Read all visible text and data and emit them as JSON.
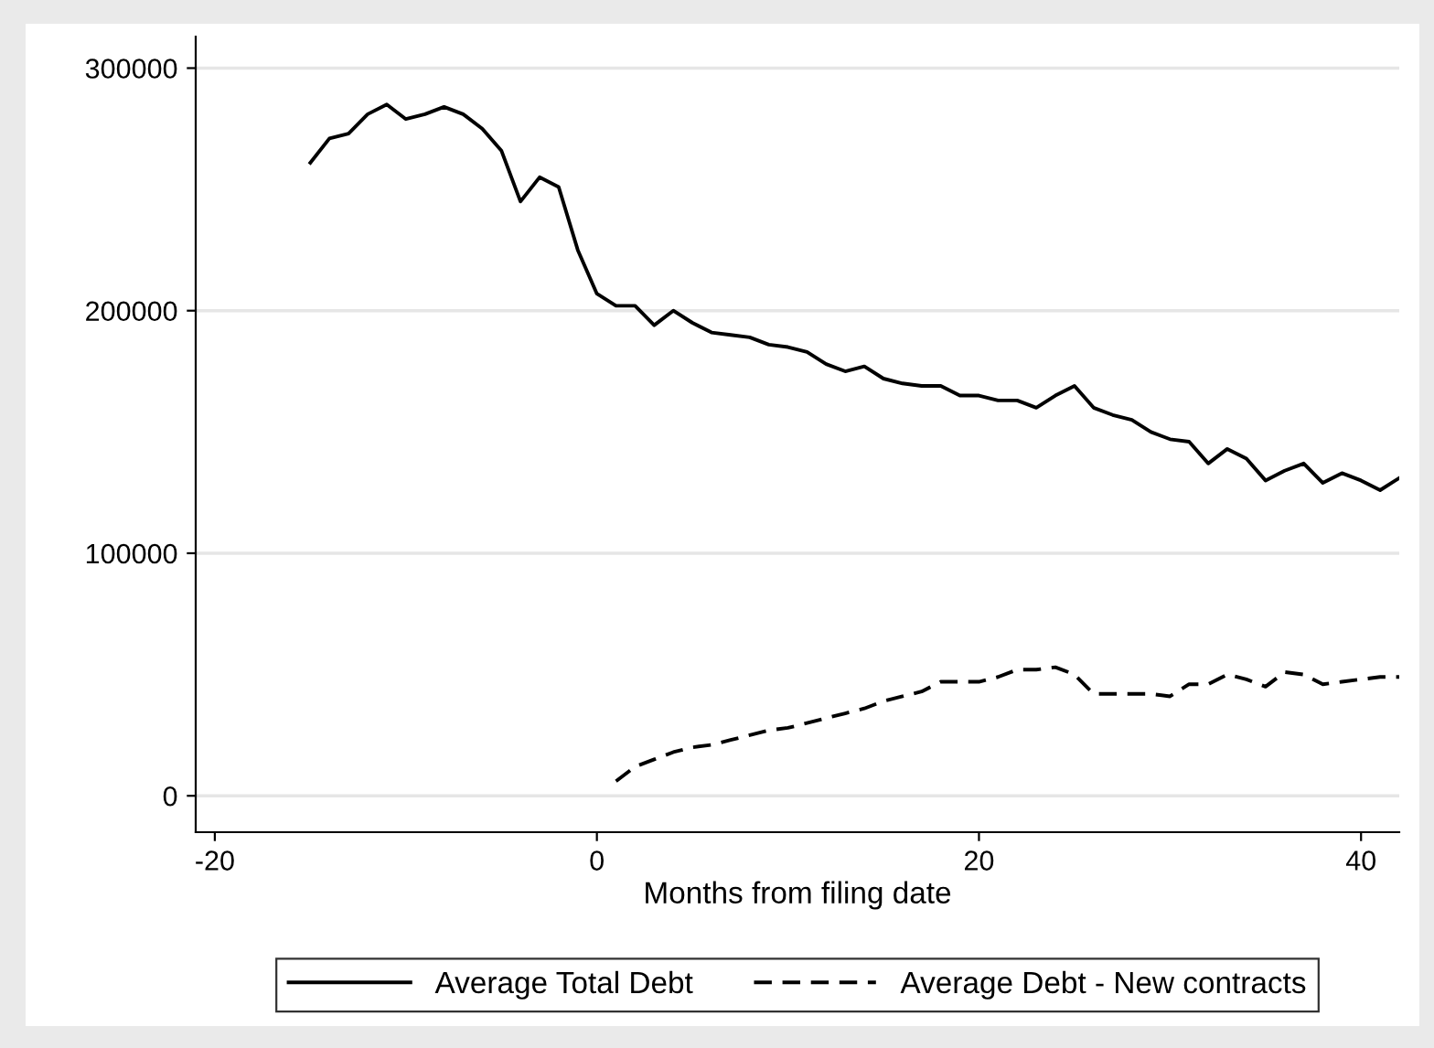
{
  "chart_data": {
    "type": "line",
    "xlabel": "Months from filing date",
    "xlim": [
      -21,
      42
    ],
    "xticks": [
      -20,
      0,
      20,
      40
    ],
    "ylim": [
      -15000,
      313000
    ],
    "yticks": [
      0,
      100000,
      200000,
      300000
    ],
    "grid": "y",
    "legend": "bottom",
    "series": [
      {
        "name": "Average Total Debt",
        "color": "#000000",
        "line_style": "solid",
        "x": [
          -15,
          -14,
          -13,
          -12,
          -11,
          -10,
          -9,
          -8,
          -7,
          -6,
          -5,
          -4,
          -3,
          -2,
          -1,
          0,
          1,
          2,
          3,
          4,
          5,
          6,
          7,
          8,
          9,
          10,
          11,
          12,
          13,
          14,
          15,
          16,
          17,
          18,
          19,
          20,
          21,
          22,
          23,
          24,
          25,
          26,
          27,
          28,
          29,
          30,
          31,
          32,
          33,
          34,
          35,
          36,
          37,
          38,
          39,
          40,
          41,
          42
        ],
        "values": [
          261000,
          271000,
          273000,
          281000,
          285000,
          279000,
          281000,
          284000,
          281000,
          275000,
          266000,
          245000,
          255000,
          251000,
          225000,
          207000,
          202000,
          202000,
          194000,
          200000,
          195000,
          191000,
          190000,
          189000,
          186000,
          185000,
          183000,
          178000,
          175000,
          177000,
          172000,
          170000,
          169000,
          169000,
          165000,
          165000,
          163000,
          163000,
          160000,
          165000,
          169000,
          160000,
          157000,
          155000,
          150000,
          147000,
          146000,
          137000,
          143000,
          139000,
          130000,
          134000,
          137000,
          129000,
          133000,
          130000,
          126000,
          131000
        ]
      },
      {
        "name": "Average Debt - New contracts",
        "color": "#000000",
        "line_style": "dashed",
        "x": [
          1,
          2,
          3,
          4,
          5,
          6,
          7,
          8,
          9,
          10,
          11,
          12,
          13,
          14,
          15,
          16,
          17,
          18,
          19,
          20,
          21,
          22,
          23,
          24,
          25,
          26,
          27,
          28,
          29,
          30,
          31,
          32,
          33,
          34,
          35,
          36,
          37,
          38,
          39,
          40,
          41,
          42
        ],
        "values": [
          6000,
          12000,
          15000,
          18000,
          20000,
          21000,
          23000,
          25000,
          27000,
          28000,
          30000,
          32000,
          34000,
          36000,
          39000,
          41000,
          43000,
          47000,
          47000,
          47000,
          49000,
          52000,
          52000,
          53000,
          50000,
          42000,
          42000,
          42000,
          42000,
          41000,
          46000,
          46000,
          50000,
          48000,
          45000,
          51000,
          50000,
          46000,
          47000,
          48000,
          49000,
          49000
        ]
      }
    ]
  }
}
